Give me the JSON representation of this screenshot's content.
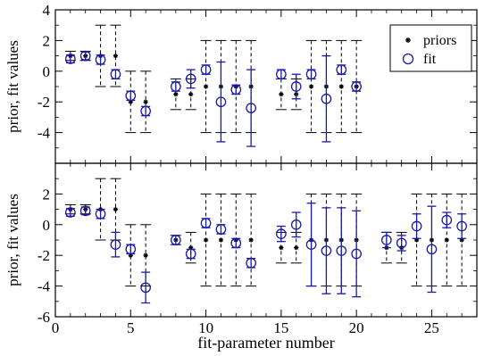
{
  "figure": {
    "xlabel": "fit-parameter number"
  },
  "chart_data": [
    {
      "type": "scatter",
      "panel": "top",
      "ylabel": "prior, fit values",
      "xlim": [
        0,
        28
      ],
      "ylim": [
        -6,
        4
      ],
      "x_ticks": [
        0,
        5,
        10,
        15,
        20,
        25
      ],
      "y_ticks": [
        -4,
        -2,
        0,
        2,
        4
      ],
      "legend": {
        "placement": "top-right",
        "entries": [
          "priors",
          "fit"
        ]
      },
      "series": [
        {
          "name": "priors",
          "marker": "star",
          "color": "#000000",
          "errorbar_style": "dashed",
          "points": [
            {
              "x": 1,
              "y": 1.0,
              "err": 0.3
            },
            {
              "x": 2,
              "y": 1.0,
              "err": 0.3
            },
            {
              "x": 3,
              "y": 1.0,
              "err": 2.0
            },
            {
              "x": 4,
              "y": 1.0,
              "err": 2.0
            },
            {
              "x": 5,
              "y": -2.0,
              "err": 2.0
            },
            {
              "x": 6,
              "y": -2.0,
              "err": 2.0
            },
            {
              "x": 8,
              "y": -1.5,
              "err": 1.0
            },
            {
              "x": 9,
              "y": -1.5,
              "err": 1.0
            },
            {
              "x": 10,
              "y": -1.0,
              "err": 3.0
            },
            {
              "x": 11,
              "y": -1.0,
              "err": 3.0
            },
            {
              "x": 12,
              "y": -1.0,
              "err": 3.0
            },
            {
              "x": 13,
              "y": -1.0,
              "err": 3.0
            },
            {
              "x": 15,
              "y": -1.5,
              "err": 1.0
            },
            {
              "x": 16,
              "y": -1.5,
              "err": 1.0
            },
            {
              "x": 17,
              "y": -1.0,
              "err": 3.0
            },
            {
              "x": 18,
              "y": -1.0,
              "err": 3.0
            },
            {
              "x": 19,
              "y": -1.0,
              "err": 3.0
            },
            {
              "x": 20,
              "y": -1.0,
              "err": 3.0
            }
          ]
        },
        {
          "name": "fit",
          "marker": "open-circle",
          "color": "#1a1aa8",
          "errorbar_style": "solid",
          "points": [
            {
              "x": 1,
              "y": 0.8,
              "err": 0.25
            },
            {
              "x": 2,
              "y": 1.0,
              "err": 0.25
            },
            {
              "x": 3,
              "y": 0.75,
              "err": 0.3
            },
            {
              "x": 4,
              "y": -0.2,
              "err": 0.3
            },
            {
              "x": 5,
              "y": -1.6,
              "err": 0.3
            },
            {
              "x": 6,
              "y": -2.6,
              "err": 0.3
            },
            {
              "x": 8,
              "y": -1.0,
              "err": 0.3
            },
            {
              "x": 9,
              "y": -0.5,
              "err": 0.6
            },
            {
              "x": 10,
              "y": 0.1,
              "err": 0.3
            },
            {
              "x": 11,
              "y": -2.0,
              "err": 2.6
            },
            {
              "x": 12,
              "y": -1.2,
              "err": 0.3
            },
            {
              "x": 13,
              "y": -2.4,
              "err": 2.5
            },
            {
              "x": 15,
              "y": -0.2,
              "err": 0.3
            },
            {
              "x": 16,
              "y": -1.0,
              "err": 0.8
            },
            {
              "x": 17,
              "y": -0.2,
              "err": 0.3
            },
            {
              "x": 18,
              "y": -1.8,
              "err": 2.8
            },
            {
              "x": 19,
              "y": 0.1,
              "err": 0.3
            },
            {
              "x": 20,
              "y": -1.0,
              "err": 0.3
            }
          ]
        }
      ]
    },
    {
      "type": "scatter",
      "panel": "bottom",
      "ylabel": "prior, fit values",
      "xlim": [
        0,
        28
      ],
      "ylim": [
        -6,
        4
      ],
      "x_ticks": [
        0,
        5,
        10,
        15,
        20,
        25
      ],
      "y_ticks": [
        -6,
        -4,
        -2,
        0,
        2
      ],
      "series": [
        {
          "name": "priors",
          "marker": "star",
          "color": "#000000",
          "errorbar_style": "dashed",
          "points": [
            {
              "x": 1,
              "y": 1.0,
              "err": 0.3
            },
            {
              "x": 2,
              "y": 1.0,
              "err": 0.3
            },
            {
              "x": 3,
              "y": 1.0,
              "err": 2.0
            },
            {
              "x": 4,
              "y": 1.0,
              "err": 2.0
            },
            {
              "x": 5,
              "y": -2.0,
              "err": 2.0
            },
            {
              "x": 6,
              "y": -2.0,
              "err": 2.0
            },
            {
              "x": 8,
              "y": -1.0,
              "err": 0.3
            },
            {
              "x": 9,
              "y": -1.5,
              "err": 1.0
            },
            {
              "x": 10,
              "y": -1.0,
              "err": 3.0
            },
            {
              "x": 11,
              "y": -1.0,
              "err": 3.0
            },
            {
              "x": 12,
              "y": -1.0,
              "err": 3.0
            },
            {
              "x": 13,
              "y": -1.0,
              "err": 3.0
            },
            {
              "x": 15,
              "y": -1.5,
              "err": 1.0
            },
            {
              "x": 16,
              "y": -1.5,
              "err": 1.0
            },
            {
              "x": 17,
              "y": -1.0,
              "err": 3.0
            },
            {
              "x": 18,
              "y": -1.0,
              "err": 3.0
            },
            {
              "x": 19,
              "y": -1.0,
              "err": 3.0
            },
            {
              "x": 20,
              "y": -1.0,
              "err": 3.0
            },
            {
              "x": 22,
              "y": -1.5,
              "err": 1.0
            },
            {
              "x": 23,
              "y": -1.5,
              "err": 1.0
            },
            {
              "x": 24,
              "y": -1.0,
              "err": 3.0
            },
            {
              "x": 25,
              "y": -1.0,
              "err": 3.0
            },
            {
              "x": 26,
              "y": -1.0,
              "err": 3.0
            },
            {
              "x": 27,
              "y": -1.0,
              "err": 3.0
            }
          ]
        },
        {
          "name": "fit",
          "marker": "open-circle",
          "color": "#1a1aa8",
          "errorbar_style": "solid",
          "points": [
            {
              "x": 1,
              "y": 0.8,
              "err": 0.25
            },
            {
              "x": 2,
              "y": 0.9,
              "err": 0.25
            },
            {
              "x": 3,
              "y": 0.7,
              "err": 0.3
            },
            {
              "x": 4,
              "y": -1.3,
              "err": 0.8
            },
            {
              "x": 5,
              "y": -1.6,
              "err": 0.3
            },
            {
              "x": 6,
              "y": -4.1,
              "err": 1.0
            },
            {
              "x": 8,
              "y": -1.0,
              "err": 0.3
            },
            {
              "x": 9,
              "y": -1.9,
              "err": 0.3
            },
            {
              "x": 10,
              "y": 0.1,
              "err": 0.3
            },
            {
              "x": 11,
              "y": -0.3,
              "err": 0.3
            },
            {
              "x": 12,
              "y": -1.2,
              "err": 0.3
            },
            {
              "x": 13,
              "y": -2.5,
              "err": 0.3
            },
            {
              "x": 15,
              "y": -0.6,
              "err": 0.5
            },
            {
              "x": 16,
              "y": 0.0,
              "err": 0.8
            },
            {
              "x": 17,
              "y": -1.3,
              "err": 2.7
            },
            {
              "x": 18,
              "y": -1.7,
              "err": 2.8
            },
            {
              "x": 19,
              "y": -1.7,
              "err": 2.8
            },
            {
              "x": 20,
              "y": -1.9,
              "err": 2.8
            },
            {
              "x": 22,
              "y": -1.0,
              "err": 0.5
            },
            {
              "x": 23,
              "y": -1.2,
              "err": 0.5
            },
            {
              "x": 24,
              "y": -0.1,
              "err": 0.8
            },
            {
              "x": 25,
              "y": -1.6,
              "err": 2.8
            },
            {
              "x": 26,
              "y": 0.3,
              "err": 0.5
            },
            {
              "x": 27,
              "y": -0.1,
              "err": 0.8
            }
          ]
        }
      ]
    }
  ]
}
